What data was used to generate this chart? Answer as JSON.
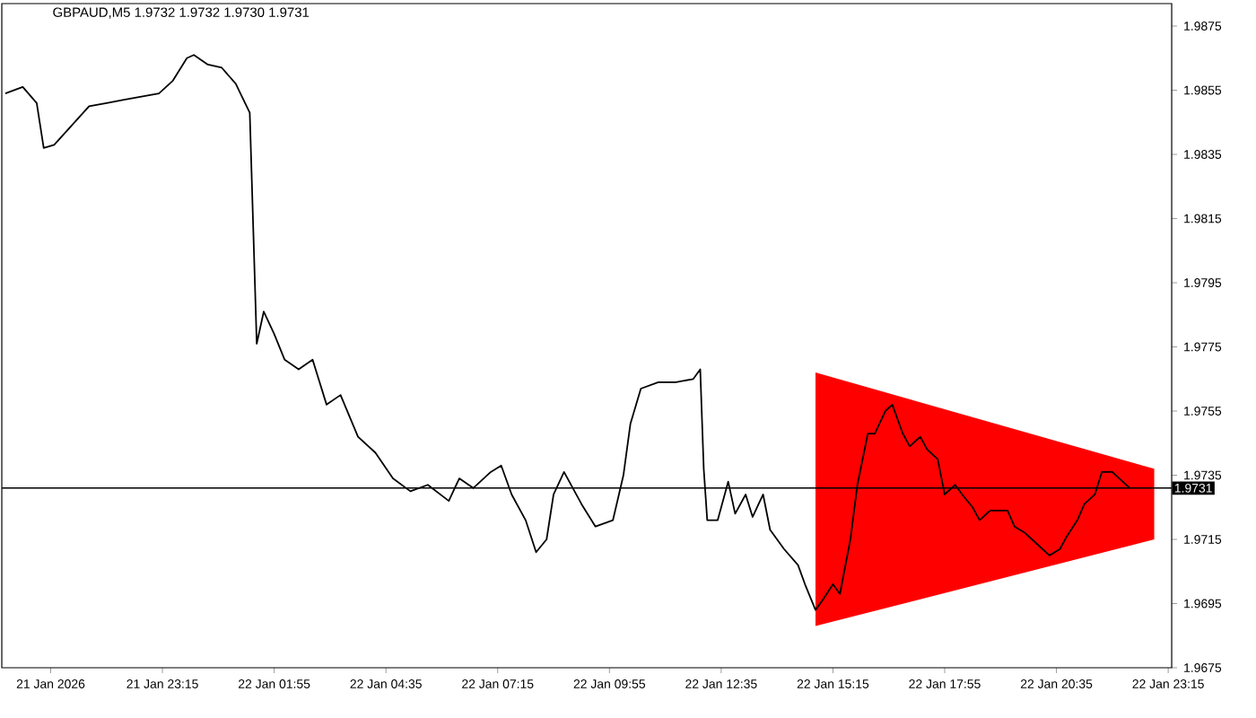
{
  "chart_data": {
    "type": "line",
    "title": "GBPAUD,M5  1.9732 1.9732 1.9730 1.9731",
    "xlim": [
      "2026-01-21T19:25",
      "2026-01-22T23:20"
    ],
    "xticks": [
      {
        "value": "2026-01-21T20:35",
        "label": "21 Jan 2026"
      },
      {
        "value": "2026-01-21T23:15",
        "label": "21 Jan 23:15"
      },
      {
        "value": "2026-01-22T01:55",
        "label": "22 Jan 01:55"
      },
      {
        "value": "2026-01-22T04:35",
        "label": "22 Jan 04:35"
      },
      {
        "value": "2026-01-22T07:15",
        "label": "22 Jan 07:15"
      },
      {
        "value": "2026-01-22T09:55",
        "label": "22 Jan 09:55"
      },
      {
        "value": "2026-01-22T12:35",
        "label": "22 Jan 12:35"
      },
      {
        "value": "2026-01-22T15:15",
        "label": "22 Jan 15:15"
      },
      {
        "value": "2026-01-22T17:55",
        "label": "22 Jan 17:55"
      },
      {
        "value": "2026-01-22T20:35",
        "label": "22 Jan 20:35"
      },
      {
        "value": "2026-01-22T23:15",
        "label": "22 Jan 23:15"
      }
    ],
    "ylim": [
      1.9675,
      1.9882
    ],
    "yticks": [
      1.9675,
      1.9695,
      1.9715,
      1.9735,
      1.9755,
      1.9775,
      1.9795,
      1.9815,
      1.9835,
      1.9855,
      1.9875
    ],
    "series": [
      {
        "color": "#ff0000",
        "x": [
          "2026-01-22T14:50",
          "2026-01-22T22:55"
        ],
        "values": [
          null,
          null
        ],
        "upper": [
          1.9767,
          1.9737
        ],
        "lower": [
          1.9688,
          1.9715
        ]
      },
      {
        "color": "#000000",
        "x": [
          "2026-01-21T19:30",
          "2026-01-21T19:55",
          "2026-01-21T20:15",
          "2026-01-21T20:25",
          "2026-01-21T20:40",
          "2026-01-21T21:05",
          "2026-01-21T21:30",
          "2026-01-21T21:55",
          "2026-01-21T22:20",
          "2026-01-21T22:45",
          "2026-01-21T23:10",
          "2026-01-21T23:30",
          "2026-01-21T23:50",
          "2026-01-22T00:00",
          "2026-01-22T00:20",
          "2026-01-22T00:40",
          "2026-01-22T01:00",
          "2026-01-22T01:20",
          "2026-01-22T01:30",
          "2026-01-22T01:40",
          "2026-01-22T01:55",
          "2026-01-22T02:10",
          "2026-01-22T02:30",
          "2026-01-22T02:50",
          "2026-01-22T03:10",
          "2026-01-22T03:30",
          "2026-01-22T03:55",
          "2026-01-22T04:20",
          "2026-01-22T04:45",
          "2026-01-22T05:10",
          "2026-01-22T05:35",
          "2026-01-22T06:05",
          "2026-01-22T06:20",
          "2026-01-22T06:40",
          "2026-01-22T07:05",
          "2026-01-22T07:20",
          "2026-01-22T07:35",
          "2026-01-22T07:55",
          "2026-01-22T08:10",
          "2026-01-22T08:25",
          "2026-01-22T08:35",
          "2026-01-22T08:50",
          "2026-01-22T09:15",
          "2026-01-22T09:35",
          "2026-01-22T10:00",
          "2026-01-22T10:15",
          "2026-01-22T10:25",
          "2026-01-22T10:40",
          "2026-01-22T11:05",
          "2026-01-22T11:30",
          "2026-01-22T11:55",
          "2026-01-22T12:05",
          "2026-01-22T12:10",
          "2026-01-22T12:15",
          "2026-01-22T12:30",
          "2026-01-22T12:45",
          "2026-01-22T12:55",
          "2026-01-22T13:10",
          "2026-01-22T13:20",
          "2026-01-22T13:35",
          "2026-01-22T13:45",
          "2026-01-22T14:05",
          "2026-01-22T14:25",
          "2026-01-22T14:35",
          "2026-01-22T14:50",
          "2026-01-22T15:00",
          "2026-01-22T15:15",
          "2026-01-22T15:25",
          "2026-01-22T15:40",
          "2026-01-22T15:50",
          "2026-01-22T16:05",
          "2026-01-22T16:15",
          "2026-01-22T16:30",
          "2026-01-22T16:40",
          "2026-01-22T16:55",
          "2026-01-22T17:05",
          "2026-01-22T17:20",
          "2026-01-22T17:30",
          "2026-01-22T17:45",
          "2026-01-22T17:55",
          "2026-01-22T18:10",
          "2026-01-22T18:20",
          "2026-01-22T18:35",
          "2026-01-22T18:45",
          "2026-01-22T19:00",
          "2026-01-22T19:25",
          "2026-01-22T19:35",
          "2026-01-22T19:50",
          "2026-01-22T20:00",
          "2026-01-22T20:15",
          "2026-01-22T20:25",
          "2026-01-22T20:40",
          "2026-01-22T20:50",
          "2026-01-22T21:05",
          "2026-01-22T21:15",
          "2026-01-22T21:30",
          "2026-01-22T21:40",
          "2026-01-22T21:55",
          "2026-01-22T22:05",
          "2026-01-22T22:20"
        ],
        "values": [
          1.9854,
          1.9856,
          1.9851,
          1.9837,
          1.9838,
          1.9844,
          1.985,
          1.9851,
          1.9852,
          1.9853,
          1.9854,
          1.9858,
          1.9865,
          1.9866,
          1.9863,
          1.9862,
          1.9857,
          1.9848,
          1.9776,
          1.9786,
          1.9779,
          1.9771,
          1.9768,
          1.9771,
          1.9757,
          1.976,
          1.9747,
          1.9742,
          1.9734,
          1.973,
          1.9732,
          1.9727,
          1.9734,
          1.9731,
          1.9736,
          1.9738,
          1.9729,
          1.9721,
          1.9711,
          1.9715,
          1.9729,
          1.9736,
          1.9726,
          1.9719,
          1.9721,
          1.9735,
          1.9751,
          1.9762,
          1.9764,
          1.9764,
          1.9765,
          1.9768,
          1.9737,
          1.9721,
          1.9721,
          1.9733,
          1.9723,
          1.9729,
          1.9722,
          1.9729,
          1.9718,
          1.9712,
          1.9707,
          1.9701,
          1.9693,
          1.9696,
          1.9701,
          1.9698,
          1.9715,
          1.9732,
          1.9748,
          1.9748,
          1.9755,
          1.9757,
          1.9748,
          1.9744,
          1.9747,
          1.9743,
          1.974,
          1.9729,
          1.9732,
          1.9729,
          1.9725,
          1.9721,
          1.9724,
          1.9724,
          1.9719,
          1.9717,
          1.9715,
          1.9712,
          1.971,
          1.9712,
          1.9716,
          1.9721,
          1.9726,
          1.9729,
          1.9736,
          1.9736,
          1.9734,
          1.9731
        ]
      }
    ],
    "ref_lines": [
      {
        "axis": "y",
        "value": 1.9731,
        "label": "1.9731",
        "color": "#000000"
      }
    ]
  }
}
